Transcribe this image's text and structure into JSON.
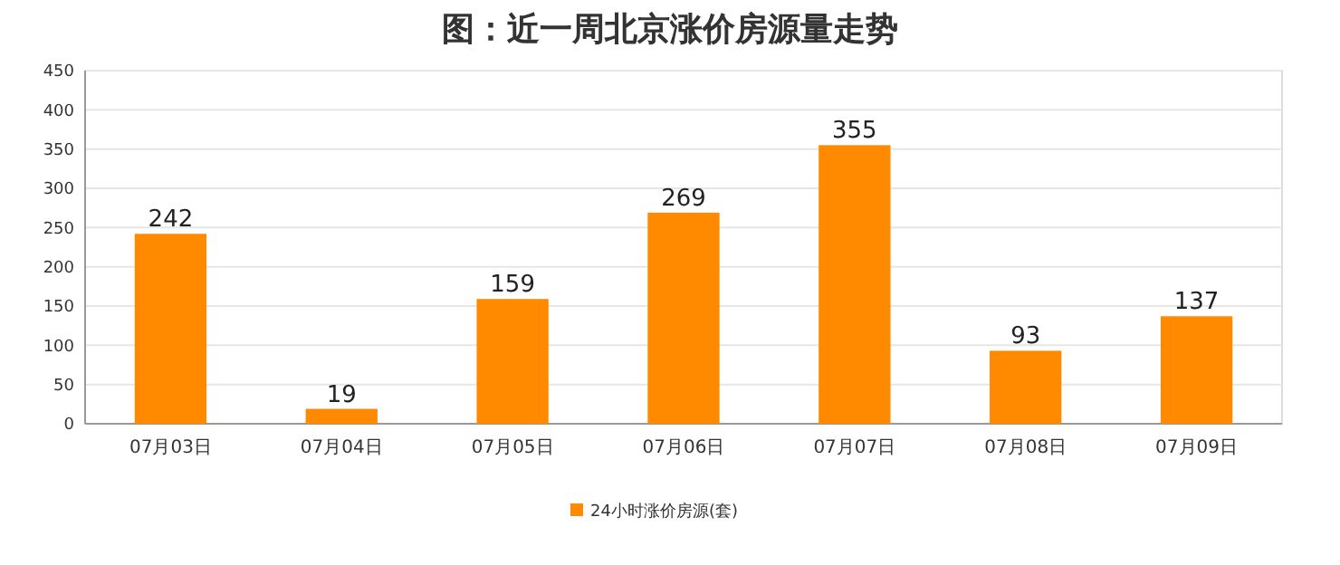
{
  "chart_data": {
    "type": "bar",
    "title": "图：近一周北京涨价房源量走势",
    "categories": [
      "07月03日",
      "07月04日",
      "07月05日",
      "07月06日",
      "07月07日",
      "07月08日",
      "07月09日"
    ],
    "series": [
      {
        "name": "24小时涨价房源(套)",
        "color": "#ff8a00",
        "values": [
          242,
          19,
          159,
          269,
          355,
          93,
          137
        ]
      }
    ],
    "ylim": [
      0,
      450
    ],
    "yticks": [
      0,
      50,
      100,
      150,
      200,
      250,
      300,
      350,
      400,
      450
    ],
    "grid": "y",
    "legend": "bottom",
    "data_labels": true
  }
}
